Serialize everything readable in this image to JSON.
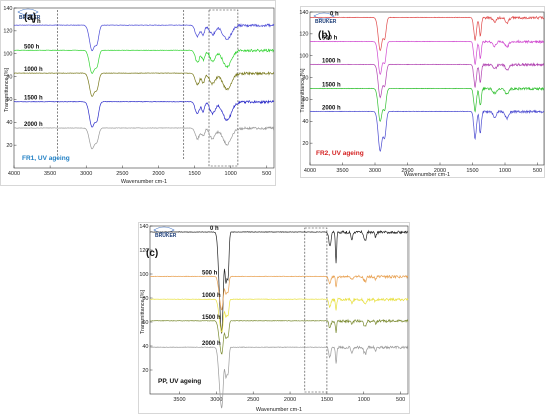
{
  "brand": {
    "logo_text": "BRUKER"
  },
  "chart_data": [
    {
      "type": "line",
      "panel_label": "(a)",
      "caption": "FR1, UV ageing",
      "caption_color": "#1f7fc4",
      "xlabel": "Wavenumber cm-1",
      "ylabel": "Transmittance [%]",
      "xlim": [
        4000,
        400
      ],
      "ylim": [
        0,
        140
      ],
      "xticks": [
        "4000",
        "3500",
        "3000",
        "2500",
        "2000",
        "1500",
        "1000",
        "500"
      ],
      "yticks": [
        "20",
        "40",
        "60",
        "80",
        "100",
        "120",
        "140"
      ],
      "highlight_lines": [
        3400,
        1650
      ],
      "highlight_box": {
        "x_from": 1300,
        "x_to": 900,
        "y_from": 0,
        "y_to": 140
      },
      "series": [
        {
          "name": "0 h",
          "color": "#4b4bd6",
          "offset": 125,
          "peaks": [
            [
              2920,
              22,
              35
            ],
            [
              2850,
              14,
              25
            ],
            [
              1460,
              10,
              30
            ],
            [
              1380,
              8,
              20
            ],
            [
              1250,
              8,
              40
            ],
            [
              1050,
              12,
              60
            ]
          ]
        },
        {
          "name": "500 h",
          "color": "#33d433",
          "offset": 103,
          "peaks": [
            [
              2920,
              20,
              35
            ],
            [
              2850,
              12,
              25
            ],
            [
              1460,
              10,
              30
            ],
            [
              1380,
              8,
              20
            ],
            [
              1250,
              9,
              40
            ],
            [
              1050,
              14,
              60
            ]
          ]
        },
        {
          "name": "1000 h",
          "color": "#7a7a1e",
          "offset": 83,
          "peaks": [
            [
              2920,
              20,
              35
            ],
            [
              2850,
              12,
              25
            ],
            [
              1460,
              10,
              30
            ],
            [
              1380,
              8,
              20
            ],
            [
              1250,
              9,
              40
            ],
            [
              1050,
              14,
              60
            ]
          ]
        },
        {
          "name": "1500 h",
          "color": "#2a2ac8",
          "offset": 58,
          "peaks": [
            [
              2920,
              22,
              35
            ],
            [
              2850,
              14,
              25
            ],
            [
              1460,
              10,
              30
            ],
            [
              1380,
              8,
              20
            ],
            [
              1250,
              10,
              40
            ],
            [
              1050,
              16,
              60
            ]
          ]
        },
        {
          "name": "2000 h",
          "color": "#9a9a9a",
          "offset": 35,
          "peaks": [
            [
              2920,
              18,
              35
            ],
            [
              2850,
              10,
              25
            ],
            [
              1460,
              9,
              30
            ],
            [
              1380,
              7,
              20
            ],
            [
              1250,
              9,
              40
            ],
            [
              1050,
              14,
              60
            ]
          ]
        }
      ]
    },
    {
      "type": "line",
      "panel_label": "(b)",
      "caption": "FR2, UV ageing",
      "caption_color": "#d42020",
      "xlabel": "Wavenumber cm-1",
      "ylabel": "Transmittance [%]",
      "xlim": [
        4000,
        400
      ],
      "ylim": [
        0,
        140
      ],
      "xticks": [
        "4000",
        "3500",
        "3000",
        "2500",
        "2000",
        "1500",
        "1000",
        "500"
      ],
      "yticks": [
        "20",
        "40",
        "60",
        "80",
        "100",
        "120",
        "140"
      ],
      "series": [
        {
          "name": "0 h",
          "color": "#e04a4a",
          "offset": 135,
          "peaks": [
            [
              2920,
              30,
              30
            ],
            [
              2850,
              18,
              22
            ],
            [
              1460,
              20,
              20
            ],
            [
              1380,
              16,
              15
            ],
            [
              1160,
              4,
              25
            ],
            [
              970,
              5,
              25
            ]
          ]
        },
        {
          "name": "500 h",
          "color": "#d04ad0",
          "offset": 113,
          "peaks": [
            [
              2920,
              30,
              30
            ],
            [
              2850,
              18,
              22
            ],
            [
              1460,
              20,
              20
            ],
            [
              1380,
              16,
              15
            ],
            [
              1160,
              4,
              25
            ],
            [
              970,
              5,
              25
            ]
          ]
        },
        {
          "name": "1000 h",
          "color": "#b040b0",
          "offset": 92,
          "peaks": [
            [
              2920,
              30,
              30
            ],
            [
              2850,
              18,
              22
            ],
            [
              1460,
              20,
              20
            ],
            [
              1380,
              16,
              15
            ],
            [
              1160,
              4,
              25
            ],
            [
              970,
              5,
              25
            ]
          ]
        },
        {
          "name": "1500 h",
          "color": "#30c030",
          "offset": 70,
          "peaks": [
            [
              2920,
              30,
              30
            ],
            [
              2850,
              18,
              22
            ],
            [
              1460,
              20,
              20
            ],
            [
              1380,
              16,
              15
            ],
            [
              1160,
              4,
              25
            ],
            [
              970,
              5,
              25
            ]
          ]
        },
        {
          "name": "2000 h",
          "color": "#4a4ad0",
          "offset": 49,
          "peaks": [
            [
              2920,
              36,
              30
            ],
            [
              2850,
              22,
              22
            ],
            [
              1460,
              24,
              20
            ],
            [
              1380,
              20,
              15
            ],
            [
              1160,
              5,
              25
            ],
            [
              970,
              6,
              25
            ]
          ]
        }
      ]
    },
    {
      "type": "line",
      "panel_label": "(c)",
      "caption": "PP, UV ageing",
      "caption_color": "#111111",
      "xlabel": "Wavenumber cm-1",
      "ylabel": "Transmittance [%]",
      "xlim": [
        3900,
        400
      ],
      "ylim": [
        0,
        140
      ],
      "xticks": [
        "3500",
        "3000",
        "2500",
        "2000",
        "1500",
        "1000",
        "500"
      ],
      "yticks": [
        "20",
        "40",
        "60",
        "80",
        "100",
        "120",
        "140"
      ],
      "highlight_box": {
        "x_from": 1800,
        "x_to": 1500,
        "y_from": 0,
        "y_to": 140
      },
      "series": [
        {
          "name": "0 h",
          "color": "#222222",
          "offset": 135,
          "peaks": [
            [
              2950,
              50,
              22
            ],
            [
              2920,
              60,
              18
            ],
            [
              2870,
              40,
              14
            ],
            [
              2840,
              35,
              12
            ],
            [
              1460,
              12,
              14
            ],
            [
              1376,
              25,
              8
            ],
            [
              1160,
              6,
              12
            ],
            [
              997,
              5,
              10
            ],
            [
              973,
              7,
              10
            ],
            [
              840,
              4,
              10
            ]
          ]
        },
        {
          "name": "500 h",
          "color": "#e8a050",
          "offset": 98,
          "peaks": [
            [
              2950,
              16,
              22
            ],
            [
              2920,
              20,
              18
            ],
            [
              2870,
              14,
              14
            ],
            [
              2840,
              12,
              12
            ],
            [
              1460,
              6,
              14
            ],
            [
              1376,
              9,
              8
            ],
            [
              1160,
              3,
              12
            ],
            [
              997,
              3,
              10
            ],
            [
              973,
              4,
              10
            ],
            [
              840,
              2,
              10
            ]
          ]
        },
        {
          "name": "1000 h",
          "color": "#e8e040",
          "offset": 79,
          "peaks": [
            [
              2950,
              16,
              22
            ],
            [
              2920,
              20,
              18
            ],
            [
              2870,
              14,
              14
            ],
            [
              2840,
              12,
              12
            ],
            [
              1460,
              6,
              14
            ],
            [
              1376,
              9,
              8
            ],
            [
              1160,
              3,
              12
            ],
            [
              997,
              3,
              10
            ],
            [
              973,
              4,
              10
            ],
            [
              840,
              2,
              10
            ]
          ]
        },
        {
          "name": "1500 h",
          "color": "#7a8a30",
          "offset": 61,
          "peaks": [
            [
              2950,
              16,
              22
            ],
            [
              2920,
              20,
              18
            ],
            [
              2870,
              14,
              14
            ],
            [
              2840,
              12,
              12
            ],
            [
              1460,
              6,
              14
            ],
            [
              1376,
              9,
              8
            ],
            [
              1160,
              3,
              12
            ],
            [
              997,
              3,
              10
            ],
            [
              973,
              4,
              10
            ],
            [
              840,
              2,
              10
            ]
          ]
        },
        {
          "name": "2000 h",
          "color": "#9a9a9a",
          "offset": 39,
          "peaks": [
            [
              2950,
              30,
              22
            ],
            [
              2920,
              36,
              18
            ],
            [
              2870,
              24,
              14
            ],
            [
              2840,
              20,
              12
            ],
            [
              1460,
              8,
              14
            ],
            [
              1376,
              14,
              8
            ],
            [
              1160,
              4,
              12
            ],
            [
              997,
              4,
              10
            ],
            [
              973,
              5,
              10
            ],
            [
              840,
              3,
              10
            ]
          ]
        }
      ]
    }
  ]
}
